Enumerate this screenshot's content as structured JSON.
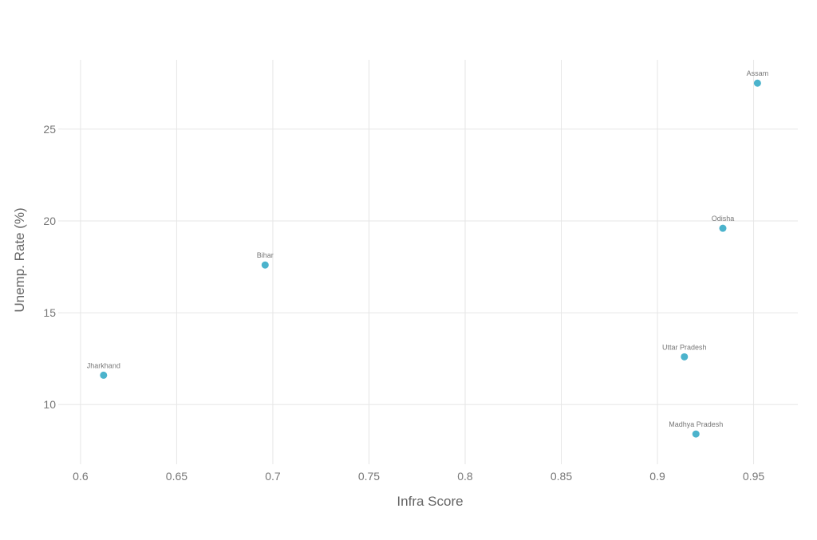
{
  "chart_data": {
    "type": "scatter",
    "title": "",
    "xlabel": "Infra Score",
    "ylabel": "Unemp. Rate (%)",
    "xlim": [
      0.5905,
      0.973
    ],
    "ylim": [
      6.97,
      28.77
    ],
    "xticks": [
      0.6,
      0.65,
      0.7,
      0.75,
      0.8,
      0.85,
      0.9,
      0.95
    ],
    "xtick_labels": [
      "0.6",
      "0.65",
      "0.7",
      "0.75",
      "0.8",
      "0.85",
      "0.9",
      "0.95"
    ],
    "yticks": [
      10,
      15,
      20,
      25
    ],
    "ytick_labels": [
      "10",
      "15",
      "20",
      "25"
    ],
    "grid": true,
    "point_color": "#4bb3cc",
    "points": [
      {
        "label": "Assam",
        "x": 0.952,
        "y": 27.5
      },
      {
        "label": "Odisha",
        "x": 0.934,
        "y": 19.6
      },
      {
        "label": "Bihar",
        "x": 0.696,
        "y": 17.6
      },
      {
        "label": "Uttar Pradesh",
        "x": 0.914,
        "y": 12.6
      },
      {
        "label": "Jharkhand",
        "x": 0.612,
        "y": 11.6
      },
      {
        "label": "Madhya Pradesh",
        "x": 0.92,
        "y": 8.4
      }
    ]
  }
}
